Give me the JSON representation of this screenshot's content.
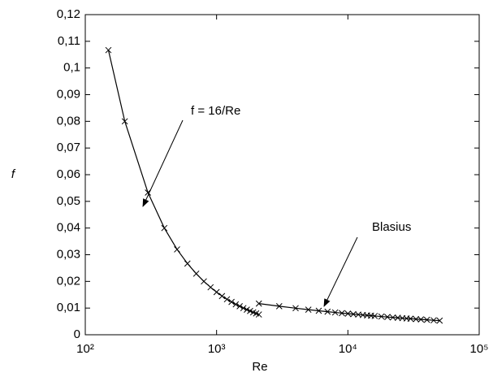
{
  "chart_data": {
    "type": "line",
    "x_label": "Re",
    "y_label": "f",
    "log_x": true,
    "color": "#000000",
    "marker": "x",
    "xlim": [
      100,
      100000
    ],
    "xticks": [
      {
        "value": 100,
        "label": "10²"
      },
      {
        "value": 1000,
        "label": "10³"
      },
      {
        "value": 10000,
        "label": "10⁴"
      },
      {
        "value": 100000,
        "label": "10⁵"
      }
    ],
    "ylim": [
      0,
      0.12
    ],
    "yticks": [
      0,
      {
        "value": 0.01,
        "label": "0,01"
      },
      {
        "value": 0.02,
        "label": "0,02"
      },
      {
        "value": 0.03,
        "label": "0,03"
      },
      {
        "value": 0.04,
        "label": "0,04"
      },
      {
        "value": 0.05,
        "label": "0,05"
      },
      {
        "value": 0.06,
        "label": "0,06"
      },
      {
        "value": 0.07,
        "label": "0,07"
      },
      {
        "value": 0.08,
        "label": "0,08"
      },
      {
        "value": 0.09,
        "label": "0,09"
      },
      {
        "value": 0.1,
        "label": "0,1"
      },
      {
        "value": 0.11,
        "label": "0,11"
      },
      {
        "value": 0.12,
        "label": "0,12"
      }
    ],
    "series": [
      {
        "x": [
          150,
          200,
          300,
          400,
          500,
          600,
          700,
          800,
          900,
          1000,
          1100,
          1200,
          1300,
          1400,
          1500,
          1600,
          1700,
          1800,
          1900,
          2000,
          2100
        ],
        "values": [
          0.1067,
          0.08,
          0.0533,
          0.04,
          0.032,
          0.0267,
          0.0229,
          0.02,
          0.0178,
          0.016,
          0.0145,
          0.0133,
          0.0123,
          0.0114,
          0.0107,
          0.01,
          0.0094,
          0.0089,
          0.0084,
          0.008,
          0.0076
        ]
      },
      {
        "x": [
          2100,
          3000,
          4000,
          5000,
          6000,
          7000,
          8000,
          9000,
          10000,
          11000,
          12000,
          13000,
          14000,
          15000,
          16000,
          18000,
          20000,
          22000,
          24000,
          26000,
          28000,
          30000,
          33000,
          36000,
          40000,
          45000,
          50000
        ],
        "values": [
          0.01168,
          0.01069,
          0.00995,
          0.00941,
          0.00899,
          0.00865,
          0.00836,
          0.00812,
          0.00791,
          0.00772,
          0.00756,
          0.00741,
          0.00727,
          0.00715,
          0.00703,
          0.00683,
          0.00665,
          0.00649,
          0.00636,
          0.00623,
          0.00611,
          0.00601,
          0.00587,
          0.00574,
          0.00559,
          0.00543,
          0.00529
        ]
      }
    ],
    "annotations": [
      {
        "text": "f = 16/Re"
      },
      {
        "text": "Blasius"
      }
    ]
  }
}
